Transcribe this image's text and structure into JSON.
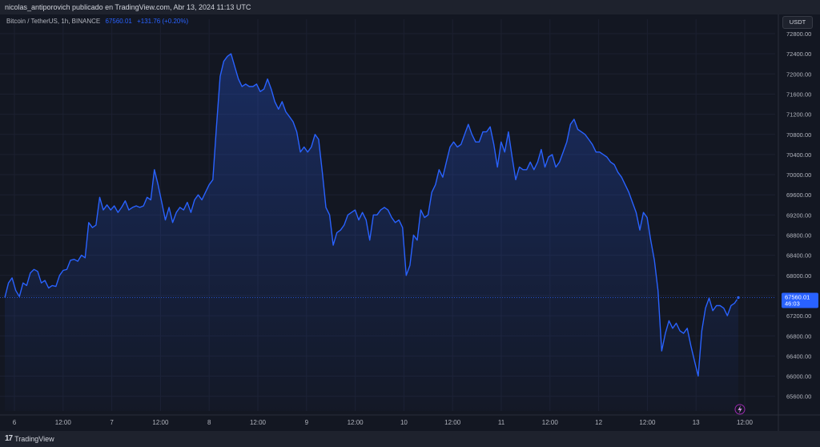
{
  "header": {
    "publisher_line": "nicolas_antiporovich publicado en TradingView.com, Abr 13, 2024 11:13 UTC"
  },
  "legend": {
    "symbol": "Bitcoin / TetherUS, 1h, BINANCE",
    "last_price": "67560.01",
    "change": "+131.76 (+0.20%)"
  },
  "currency_button": "USDT",
  "price_tag": {
    "price": "67560.01",
    "countdown": "46:03"
  },
  "footer": {
    "brand": "TradingView",
    "logo_mark": "17"
  },
  "icons": {
    "lightning": "lightning-icon"
  },
  "colors": {
    "line": "#2962ff",
    "background": "#131722",
    "grid": "#1f2330"
  },
  "chart_data": {
    "type": "area",
    "title": "",
    "xlabel": "",
    "ylabel": "",
    "ylim": [
      65400,
      72800
    ],
    "grid": true,
    "y_ticks": [
      "72800.00",
      "72400.00",
      "72000.00",
      "71600.00",
      "71200.00",
      "70800.00",
      "70400.00",
      "70000.00",
      "69600.00",
      "69200.00",
      "68800.00",
      "68400.00",
      "68000.00",
      "67600.00",
      "67200.00",
      "66800.00",
      "66400.00",
      "66000.00",
      "65600.00"
    ],
    "x_ticks": [
      "6",
      "12:00",
      "7",
      "12:00",
      "8",
      "12:00",
      "9",
      "12:00",
      "10",
      "12:00",
      "11",
      "12:00",
      "12",
      "12:00",
      "13",
      "12:00"
    ],
    "series": [
      {
        "values": [
          67560,
          67850,
          67950,
          67700,
          67580,
          67850,
          67800,
          68050,
          68120,
          68080,
          67850,
          67900,
          67750,
          67800,
          67780,
          68000,
          68100,
          68120,
          68300,
          68320,
          68280,
          68400,
          68350,
          69050,
          68950,
          69000,
          69550,
          69300,
          69400,
          69300,
          69380,
          69250,
          69350,
          69480,
          69300,
          69350,
          69380,
          69350,
          69380,
          69550,
          69500,
          70100,
          69800,
          69450,
          69100,
          69350,
          69050,
          69250,
          69350,
          69300,
          69450,
          69250,
          69500,
          69600,
          69500,
          69650,
          69800,
          69900,
          70950,
          71950,
          72250,
          72350,
          72400,
          72150,
          71900,
          71750,
          71800,
          71750,
          71750,
          71800,
          71650,
          71700,
          71900,
          71700,
          71450,
          71300,
          71450,
          71250,
          71150,
          71050,
          70850,
          70450,
          70550,
          70450,
          70550,
          70800,
          70700,
          70050,
          69350,
          69200,
          68600,
          68850,
          68900,
          69000,
          69200,
          69250,
          69300,
          69100,
          69250,
          69100,
          68700,
          69200,
          69200,
          69300,
          69350,
          69300,
          69150,
          69050,
          69100,
          68950,
          68000,
          68200,
          68800,
          68700,
          69300,
          69150,
          69200,
          69650,
          69800,
          70100,
          69950,
          70250,
          70550,
          70650,
          70550,
          70600,
          70800,
          71000,
          70800,
          70650,
          70650,
          70850,
          70850,
          70950,
          70600,
          70150,
          70650,
          70450,
          70850,
          70350,
          69900,
          70150,
          70100,
          70100,
          70250,
          70100,
          70250,
          70500,
          70150,
          70350,
          70400,
          70150,
          70250,
          70450,
          70650,
          71000,
          71100,
          70900,
          70850,
          70800,
          70700,
          70600,
          70450,
          70450,
          70400,
          70350,
          70250,
          70200,
          70050,
          69950,
          69800,
          69650,
          69450,
          69250,
          68900,
          69250,
          69150,
          68700,
          68300,
          67700,
          66500,
          66850,
          67100,
          66950,
          67050,
          66900,
          66850,
          66950,
          66600,
          66300,
          66000,
          66900,
          67350,
          67550,
          67300,
          67400,
          67400,
          67350,
          67200,
          67400,
          67450,
          67560
        ]
      }
    ]
  }
}
